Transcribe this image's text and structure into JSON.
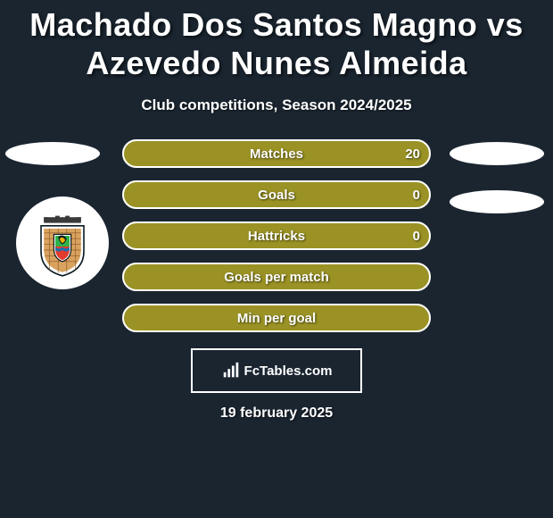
{
  "title": "Machado Dos Santos Magno vs Azevedo Nunes Almeida",
  "subtitle": "Club competitions, Season 2024/2025",
  "colors": {
    "background": "#1a2530",
    "bar_fill": "#9a9224",
    "border": "#ffffff",
    "text": "#ffffff"
  },
  "side_pills": {
    "left": [
      {
        "visible": true
      }
    ],
    "right": [
      {
        "visible": true
      },
      {
        "visible": true
      }
    ]
  },
  "stats": [
    {
      "label": "Matches",
      "value_right": "20",
      "fill_pct": 100
    },
    {
      "label": "Goals",
      "value_right": "0",
      "fill_pct": 100
    },
    {
      "label": "Hattricks",
      "value_right": "0",
      "fill_pct": 100
    },
    {
      "label": "Goals per match",
      "value_right": "",
      "fill_pct": 100
    },
    {
      "label": "Min per goal",
      "value_right": "",
      "fill_pct": 100
    }
  ],
  "club_badge": {
    "name": "rio-ave-badge",
    "shield_fill": "#ffffff",
    "stripe_color": "#d9a25e",
    "crest_center_top": "#2fb24a",
    "crest_center_bottom": "#e23b2e",
    "top_band": "#3a3a3a",
    "outline": "#0b1a22"
  },
  "footer": {
    "brand": "FcTables.com",
    "icon_color": "#ffffff"
  },
  "date": "19 february 2025"
}
